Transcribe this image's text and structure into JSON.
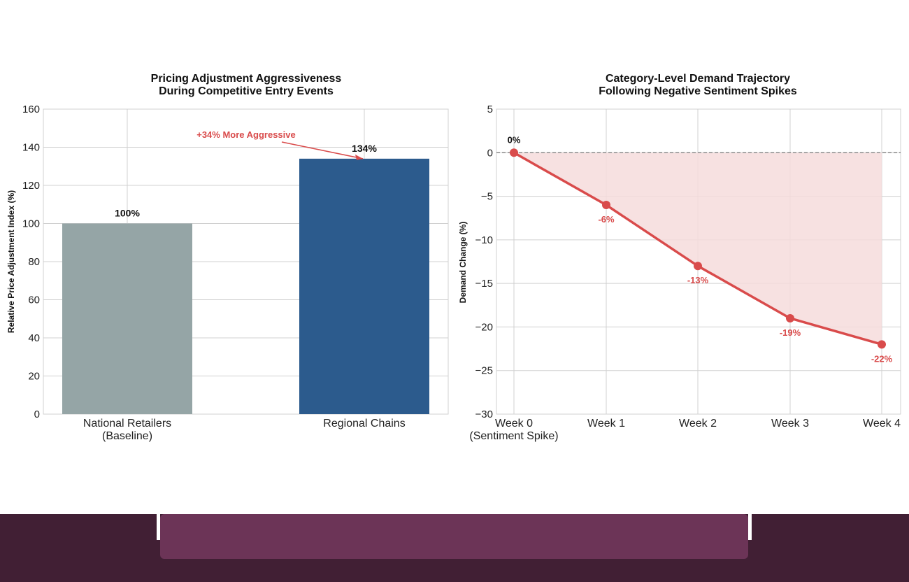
{
  "colors": {
    "national": "#95a5a6",
    "regional": "#2c5b8d",
    "accent_red": "#d94b4b",
    "fill_red": "#f6dcdc",
    "grid": "#d0d0d0",
    "footer_dark": "#411f34",
    "footer_panel": "#6c3457"
  },
  "chart_data": [
    {
      "type": "bar",
      "title_lines": [
        "Pricing Adjustment Aggressiveness",
        "During Competitive Entry Events"
      ],
      "xlabel": "",
      "ylabel": "Relative Price Adjustment Index (%)",
      "categories": [
        {
          "lines": [
            "National Retailers",
            "(Baseline)"
          ]
        },
        {
          "lines": [
            "Regional Chains"
          ]
        }
      ],
      "values": [
        100,
        134
      ],
      "data_labels": [
        "100%",
        "134%"
      ],
      "bar_colors": [
        "#95a5a6",
        "#2c5b8d"
      ],
      "ylim": [
        0,
        160
      ],
      "yticks": [
        0,
        20,
        40,
        60,
        80,
        100,
        120,
        140,
        160
      ],
      "annotation": {
        "text": "+34% More Aggressive",
        "target": {
          "category": 1,
          "value": 134
        }
      },
      "grid": true,
      "legend": "none"
    },
    {
      "type": "area",
      "title_lines": [
        "Category-Level Demand Trajectory",
        "Following Negative Sentiment Spikes"
      ],
      "xlabel": "",
      "ylabel": "Demand Change (%)",
      "categories": [
        {
          "lines": [
            "Week 0",
            "(Sentiment Spike)"
          ]
        },
        {
          "lines": [
            "Week 1"
          ]
        },
        {
          "lines": [
            "Week 2"
          ]
        },
        {
          "lines": [
            "Week 3"
          ]
        },
        {
          "lines": [
            "Week 4"
          ]
        }
      ],
      "values": [
        0,
        -6,
        -13,
        -19,
        -22
      ],
      "data_labels": [
        "0%",
        "-6%",
        "-13%",
        "-19%",
        "-22%"
      ],
      "ylim": [
        -30,
        5
      ],
      "yticks": [
        5,
        0,
        -5,
        -10,
        -15,
        -20,
        -25,
        -30
      ],
      "ytick_labels": [
        "5",
        "0",
        "−5",
        "−10",
        "−15",
        "−20",
        "−25",
        "−30"
      ],
      "reference_line": 0,
      "grid": true,
      "legend": "none"
    }
  ]
}
